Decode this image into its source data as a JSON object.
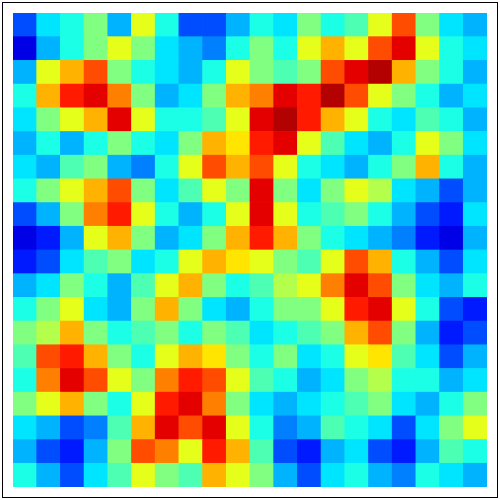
{
  "chart_data": {
    "type": "heatmap",
    "color": "jet",
    "tick_labels": false,
    "grid": false,
    "cells": [
      [
        0.2,
        0.35,
        0.4,
        0.5,
        0.3,
        0.6,
        0.4,
        0.2,
        0.2,
        0.3,
        0.4,
        0.35,
        0.5,
        0.4,
        0.45,
        0.6,
        0.8,
        0.5,
        0.35,
        0.3
      ],
      [
        0.1,
        0.3,
        0.4,
        0.5,
        0.6,
        0.5,
        0.35,
        0.3,
        0.25,
        0.4,
        0.5,
        0.4,
        0.6,
        0.7,
        0.6,
        0.8,
        0.9,
        0.6,
        0.4,
        0.35
      ],
      [
        0.3,
        0.6,
        0.7,
        0.8,
        0.5,
        0.4,
        0.35,
        0.3,
        0.4,
        0.6,
        0.5,
        0.45,
        0.5,
        0.8,
        0.9,
        0.95,
        0.7,
        0.5,
        0.4,
        0.3
      ],
      [
        0.4,
        0.7,
        0.85,
        0.9,
        0.75,
        0.5,
        0.3,
        0.35,
        0.5,
        0.7,
        0.75,
        0.9,
        0.85,
        0.95,
        0.8,
        0.6,
        0.5,
        0.4,
        0.3,
        0.35
      ],
      [
        0.35,
        0.5,
        0.6,
        0.7,
        0.9,
        0.6,
        0.4,
        0.4,
        0.45,
        0.6,
        0.9,
        0.95,
        0.85,
        0.7,
        0.6,
        0.4,
        0.35,
        0.45,
        0.4,
        0.3
      ],
      [
        0.3,
        0.4,
        0.3,
        0.4,
        0.5,
        0.4,
        0.35,
        0.5,
        0.7,
        0.65,
        0.85,
        0.9,
        0.6,
        0.45,
        0.35,
        0.3,
        0.4,
        0.6,
        0.5,
        0.35
      ],
      [
        0.35,
        0.3,
        0.45,
        0.5,
        0.3,
        0.25,
        0.4,
        0.6,
        0.8,
        0.7,
        0.8,
        0.6,
        0.4,
        0.35,
        0.3,
        0.4,
        0.5,
        0.7,
        0.4,
        0.3
      ],
      [
        0.4,
        0.5,
        0.6,
        0.7,
        0.8,
        0.5,
        0.35,
        0.45,
        0.6,
        0.5,
        0.9,
        0.5,
        0.35,
        0.5,
        0.6,
        0.55,
        0.35,
        0.3,
        0.2,
        0.3
      ],
      [
        0.2,
        0.3,
        0.5,
        0.75,
        0.85,
        0.6,
        0.4,
        0.3,
        0.4,
        0.6,
        0.9,
        0.6,
        0.4,
        0.45,
        0.5,
        0.4,
        0.3,
        0.2,
        0.15,
        0.35
      ],
      [
        0.1,
        0.15,
        0.3,
        0.6,
        0.7,
        0.5,
        0.3,
        0.35,
        0.5,
        0.7,
        0.85,
        0.7,
        0.5,
        0.4,
        0.35,
        0.3,
        0.25,
        0.15,
        0.1,
        0.3
      ],
      [
        0.15,
        0.2,
        0.35,
        0.45,
        0.5,
        0.35,
        0.4,
        0.6,
        0.7,
        0.65,
        0.6,
        0.5,
        0.45,
        0.6,
        0.8,
        0.7,
        0.4,
        0.3,
        0.2,
        0.35
      ],
      [
        0.3,
        0.35,
        0.5,
        0.4,
        0.3,
        0.45,
        0.6,
        0.7,
        0.5,
        0.4,
        0.45,
        0.55,
        0.6,
        0.75,
        0.9,
        0.8,
        0.5,
        0.35,
        0.3,
        0.4
      ],
      [
        0.4,
        0.5,
        0.6,
        0.35,
        0.3,
        0.5,
        0.7,
        0.5,
        0.35,
        0.3,
        0.4,
        0.5,
        0.5,
        0.6,
        0.85,
        0.9,
        0.6,
        0.4,
        0.2,
        0.15
      ],
      [
        0.5,
        0.55,
        0.7,
        0.5,
        0.4,
        0.45,
        0.5,
        0.4,
        0.5,
        0.45,
        0.35,
        0.4,
        0.45,
        0.5,
        0.7,
        0.8,
        0.5,
        0.3,
        0.15,
        0.2
      ],
      [
        0.45,
        0.8,
        0.85,
        0.7,
        0.5,
        0.4,
        0.6,
        0.7,
        0.65,
        0.5,
        0.4,
        0.5,
        0.35,
        0.4,
        0.6,
        0.65,
        0.45,
        0.35,
        0.2,
        0.3
      ],
      [
        0.4,
        0.75,
        0.9,
        0.8,
        0.6,
        0.5,
        0.75,
        0.85,
        0.8,
        0.6,
        0.45,
        0.4,
        0.3,
        0.35,
        0.5,
        0.55,
        0.4,
        0.4,
        0.3,
        0.35
      ],
      [
        0.5,
        0.6,
        0.7,
        0.5,
        0.4,
        0.6,
        0.85,
        0.9,
        0.75,
        0.5,
        0.35,
        0.3,
        0.35,
        0.4,
        0.45,
        0.5,
        0.35,
        0.3,
        0.4,
        0.5
      ],
      [
        0.35,
        0.3,
        0.2,
        0.25,
        0.45,
        0.7,
        0.9,
        0.8,
        0.9,
        0.6,
        0.4,
        0.25,
        0.3,
        0.45,
        0.4,
        0.35,
        0.2,
        0.35,
        0.5,
        0.6
      ],
      [
        0.3,
        0.2,
        0.15,
        0.3,
        0.5,
        0.8,
        0.75,
        0.6,
        0.85,
        0.7,
        0.45,
        0.2,
        0.15,
        0.3,
        0.35,
        0.2,
        0.15,
        0.3,
        0.45,
        0.4
      ],
      [
        0.4,
        0.3,
        0.2,
        0.35,
        0.45,
        0.6,
        0.5,
        0.45,
        0.7,
        0.6,
        0.5,
        0.3,
        0.2,
        0.35,
        0.4,
        0.3,
        0.25,
        0.4,
        0.35,
        0.3
      ]
    ]
  }
}
